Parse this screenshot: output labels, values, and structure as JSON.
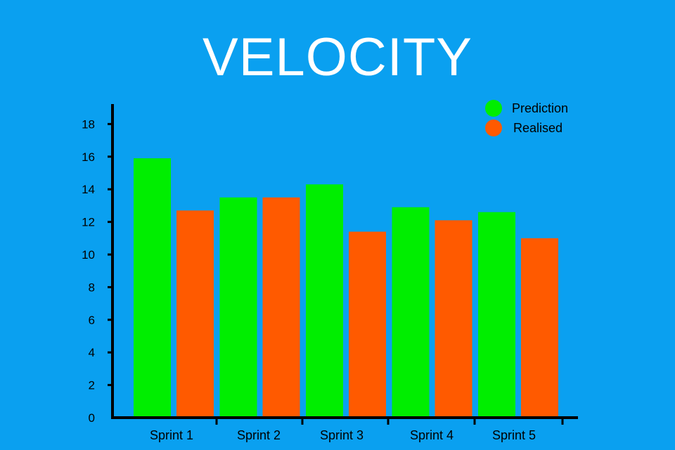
{
  "chart_data": {
    "type": "bar",
    "title": "VELOCITY",
    "xlabel": "",
    "ylabel": "",
    "categories": [
      "Sprint 1",
      "Sprint 2",
      "Sprint 3",
      "Sprint 4",
      "Sprint 5"
    ],
    "series": [
      {
        "name": "Prediction",
        "color": "#00ee00",
        "values": [
          15.9,
          13.5,
          14.3,
          12.9,
          12.6
        ]
      },
      {
        "name": "Realised",
        "color": "#ff5a00",
        "values": [
          12.7,
          13.5,
          11.4,
          12.1,
          11.0
        ]
      }
    ],
    "ylim": [
      0,
      19
    ],
    "yticks": [
      0,
      2,
      4,
      6,
      8,
      10,
      12,
      14,
      16,
      18
    ],
    "grid": false,
    "legend": "top-right"
  },
  "colors": {
    "background": "#0aa0f0",
    "axis": "#000000",
    "title": "#ffffff"
  }
}
